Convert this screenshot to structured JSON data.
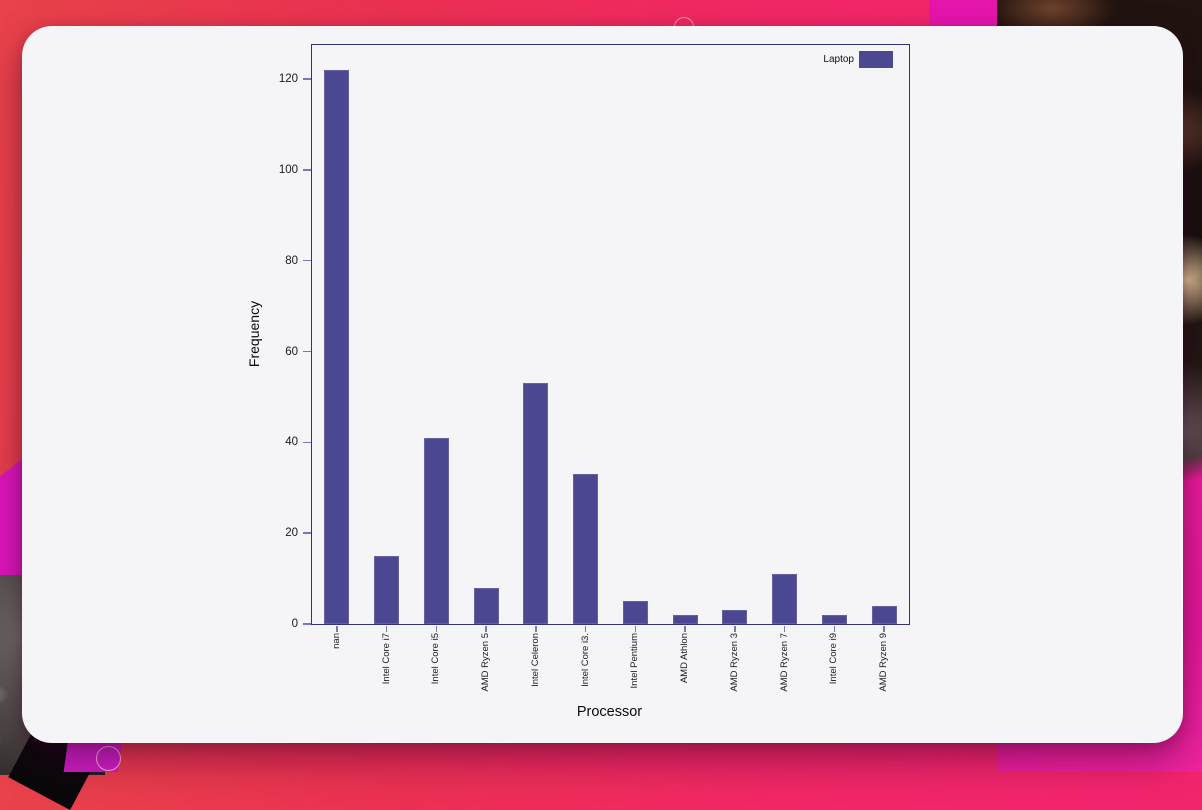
{
  "chart_data": {
    "type": "bar",
    "title": "",
    "xlabel": "Processor",
    "ylabel": "Frequency",
    "categories": [
      "nan",
      "Intel Core i7",
      "Intel Core i5",
      "AMD Ryzen 5",
      "Intel Celeron",
      "Intel Core i3.",
      "Intel Pentium",
      "AMD Athlon",
      "AMD Ryzen 3",
      "AMD Ryzen 7",
      "Intel Core i9",
      "AMD Ryzen 9"
    ],
    "values": [
      122,
      15,
      41,
      8,
      53,
      33,
      5,
      2,
      3,
      11,
      2,
      4
    ],
    "series": [
      {
        "name": "Laptop",
        "values": [
          122,
          15,
          41,
          8,
          53,
          33,
          5,
          2,
          3,
          11,
          2,
          4
        ]
      }
    ],
    "yticks": [
      0,
      20,
      40,
      60,
      80,
      100,
      120
    ],
    "ylim": [
      0,
      127.5
    ],
    "grid": false,
    "legend": {
      "label": "Laptop",
      "position": "upper-right"
    },
    "bar_color": "#4c4791"
  },
  "colors": {
    "bar": "#4c4791",
    "axis_border": "#32327a",
    "tick": "#7b77b8",
    "card_background": "#f5f4f6",
    "background_red": "#e8424a",
    "background_pink": "#f3246e",
    "background_magenta": "#e616ac",
    "background_dark_photo": "#1c1210",
    "background_accent_pink": "#ec1b9c"
  }
}
